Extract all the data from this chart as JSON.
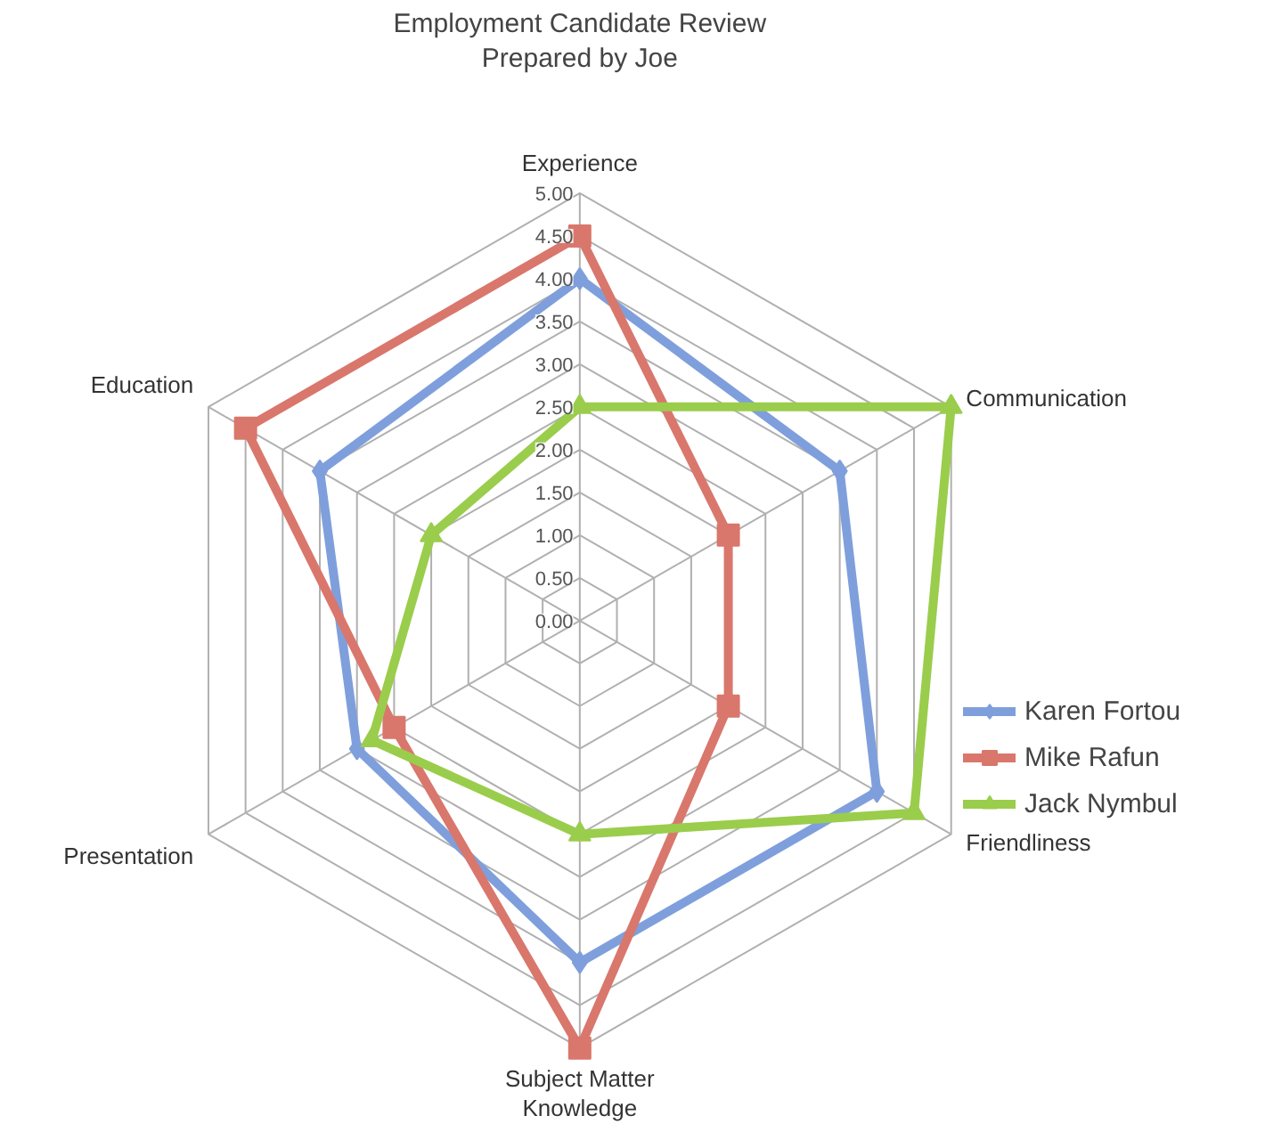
{
  "chart_data": {
    "type": "radar",
    "title": "Employment Candidate Review",
    "subtitle": "Prepared by Joe",
    "categories": [
      "Experience",
      "Communication",
      "Friendliness",
      "Subject Matter\nKnowledge",
      "Presentation",
      "Education"
    ],
    "ylim": [
      0,
      5
    ],
    "yticks": [
      {
        "value": 0,
        "label": "0.00"
      },
      {
        "value": 0.5,
        "label": "0.50"
      },
      {
        "value": 1,
        "label": "1.00"
      },
      {
        "value": 1.5,
        "label": "1.50"
      },
      {
        "value": 2,
        "label": "2.00"
      },
      {
        "value": 2.5,
        "label": "2.50"
      },
      {
        "value": 3,
        "label": "3.00"
      },
      {
        "value": 3.5,
        "label": "3.50"
      },
      {
        "value": 4,
        "label": "4.00"
      },
      {
        "value": 4.5,
        "label": "4.50"
      },
      {
        "value": 5,
        "label": "5.00"
      }
    ],
    "grid": true,
    "legend": "right",
    "series": [
      {
        "name": "Karen Fortou",
        "color": "#7f9fdc",
        "marker": "diamond",
        "values": [
          4,
          3.5,
          4,
          4,
          3,
          3.5
        ]
      },
      {
        "name": "Mike Rafun",
        "color": "#d9776c",
        "marker": "square",
        "values": [
          4.5,
          2,
          2,
          5,
          2.5,
          4.5
        ]
      },
      {
        "name": "Jack Nymbul",
        "color": "#9acd4c",
        "marker": "triangle",
        "values": [
          2.5,
          5,
          4.5,
          2.5,
          2.8,
          2
        ]
      }
    ]
  }
}
